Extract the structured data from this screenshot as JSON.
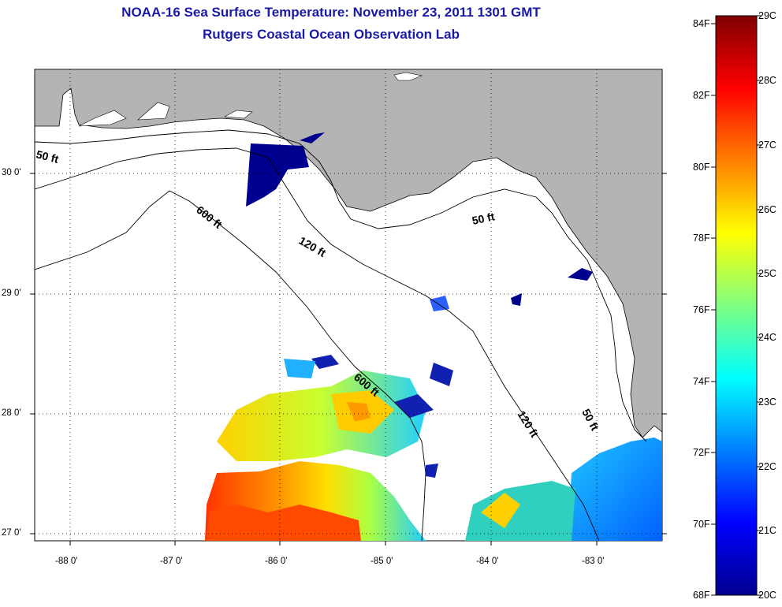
{
  "title_line1": "NOAA-16 Sea Surface Temperature:  November 23, 2011 1301 GMT",
  "title_line2": "Rutgers Coastal Ocean Observation Lab",
  "title_color": "#1a1aa6",
  "lat_labels": [
    "30 0'",
    "29 0'",
    "28 0'",
    "27 0'"
  ],
  "lon_labels": [
    "-88 0'",
    "-87 0'",
    "-86 0'",
    "-85 0'",
    "-84 0'",
    "-83 0'"
  ],
  "contour_labels": [
    "50 ft",
    "600 ft",
    "120 ft",
    "50 ft",
    "600 ft",
    "120 ft",
    "50 ft"
  ],
  "colorbar": {
    "fahrenheit": [
      "84F",
      "82F",
      "80F",
      "78F",
      "76F",
      "74F",
      "72F",
      "70F",
      "68F"
    ],
    "celsius": [
      "29C",
      "28C",
      "27C",
      "26C",
      "25C",
      "24C",
      "23C",
      "22C",
      "21C",
      "20C"
    ]
  },
  "colors": {
    "land": "#b4b4b4",
    "ocean": "#ffffff",
    "cold_patch": "#00008f"
  }
}
